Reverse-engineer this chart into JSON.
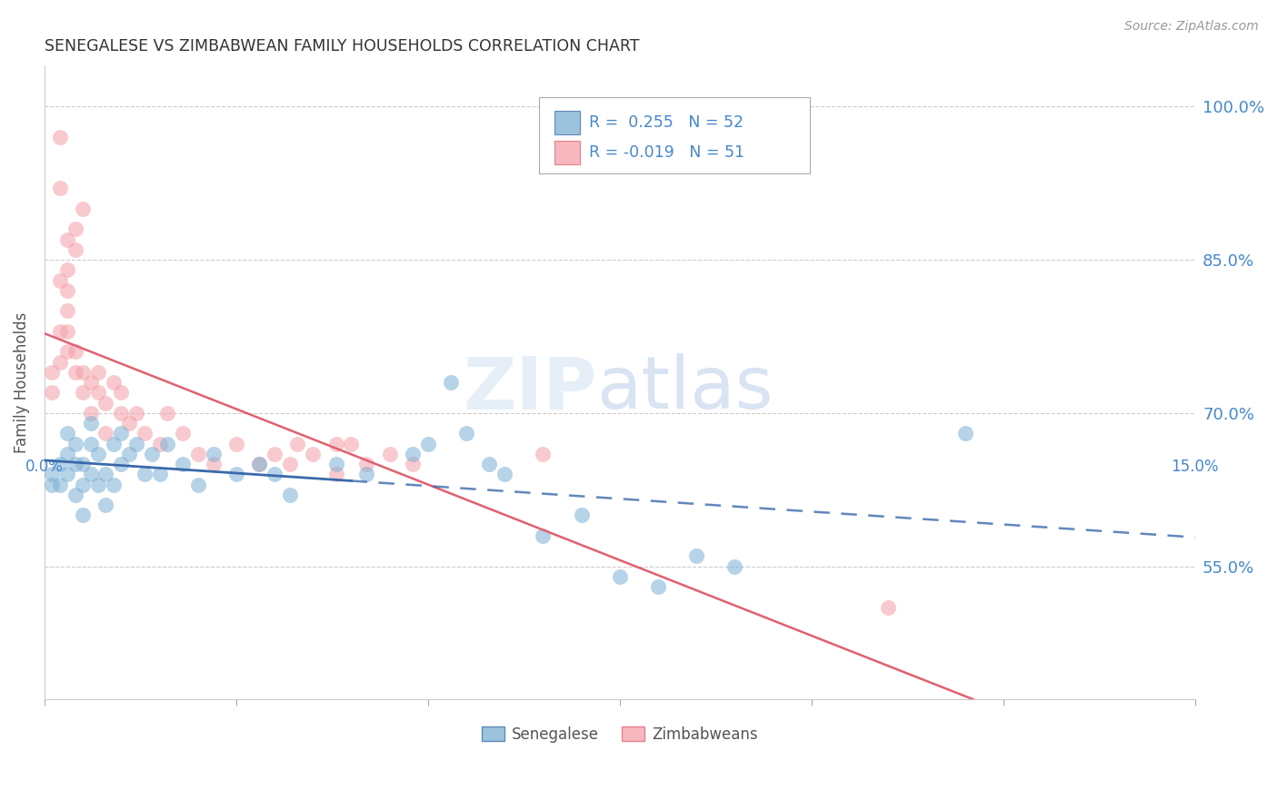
{
  "title": "SENEGALESE VS ZIMBABWEAN FAMILY HOUSEHOLDS CORRELATION CHART",
  "source": "Source: ZipAtlas.com",
  "ylabel": "Family Households",
  "ytick_labels": [
    "55.0%",
    "70.0%",
    "85.0%",
    "100.0%"
  ],
  "ytick_values": [
    0.55,
    0.7,
    0.85,
    1.0
  ],
  "xlim": [
    0.0,
    0.15
  ],
  "ylim": [
    0.42,
    1.04
  ],
  "blue_color": "#7bafd4",
  "pink_color": "#f4a0a8",
  "blue_line_color": "#3a6aaa",
  "pink_line_color": "#e06070",
  "grid_color": "#cccccc",
  "title_color": "#333333",
  "axis_label_color": "#4488cc",
  "senegalese_x": [
    0.001,
    0.001,
    0.002,
    0.002,
    0.003,
    0.003,
    0.003,
    0.004,
    0.004,
    0.004,
    0.005,
    0.005,
    0.005,
    0.006,
    0.006,
    0.006,
    0.007,
    0.007,
    0.008,
    0.008,
    0.009,
    0.009,
    0.01,
    0.01,
    0.011,
    0.012,
    0.013,
    0.014,
    0.015,
    0.016,
    0.018,
    0.02,
    0.022,
    0.025,
    0.028,
    0.03,
    0.032,
    0.038,
    0.042,
    0.048,
    0.05,
    0.053,
    0.055,
    0.058,
    0.06,
    0.065,
    0.07,
    0.075,
    0.08,
    0.085,
    0.09,
    0.12
  ],
  "senegalese_y": [
    0.63,
    0.64,
    0.63,
    0.65,
    0.64,
    0.66,
    0.68,
    0.62,
    0.65,
    0.67,
    0.6,
    0.63,
    0.65,
    0.64,
    0.67,
    0.69,
    0.63,
    0.66,
    0.61,
    0.64,
    0.63,
    0.67,
    0.65,
    0.68,
    0.66,
    0.67,
    0.64,
    0.66,
    0.64,
    0.67,
    0.65,
    0.63,
    0.66,
    0.64,
    0.65,
    0.64,
    0.62,
    0.65,
    0.64,
    0.66,
    0.67,
    0.73,
    0.68,
    0.65,
    0.64,
    0.58,
    0.6,
    0.54,
    0.53,
    0.56,
    0.55,
    0.68
  ],
  "zimbabwean_x": [
    0.001,
    0.001,
    0.002,
    0.002,
    0.003,
    0.003,
    0.003,
    0.004,
    0.004,
    0.005,
    0.005,
    0.006,
    0.006,
    0.007,
    0.007,
    0.008,
    0.008,
    0.009,
    0.01,
    0.01,
    0.011,
    0.012,
    0.013,
    0.015,
    0.016,
    0.018,
    0.02,
    0.022,
    0.025,
    0.028,
    0.03,
    0.032,
    0.033,
    0.035,
    0.038,
    0.04,
    0.042,
    0.045,
    0.048,
    0.065,
    0.038,
    0.004,
    0.005,
    0.003,
    0.002,
    0.002,
    0.002,
    0.003,
    0.003,
    0.004,
    0.11
  ],
  "zimbabwean_y": [
    0.72,
    0.74,
    0.75,
    0.78,
    0.76,
    0.78,
    0.8,
    0.74,
    0.76,
    0.72,
    0.74,
    0.7,
    0.73,
    0.72,
    0.74,
    0.68,
    0.71,
    0.73,
    0.7,
    0.72,
    0.69,
    0.7,
    0.68,
    0.67,
    0.7,
    0.68,
    0.66,
    0.65,
    0.67,
    0.65,
    0.66,
    0.65,
    0.67,
    0.66,
    0.64,
    0.67,
    0.65,
    0.66,
    0.65,
    0.66,
    0.67,
    0.88,
    0.9,
    0.87,
    0.92,
    0.97,
    0.83,
    0.82,
    0.84,
    0.86,
    0.51
  ]
}
